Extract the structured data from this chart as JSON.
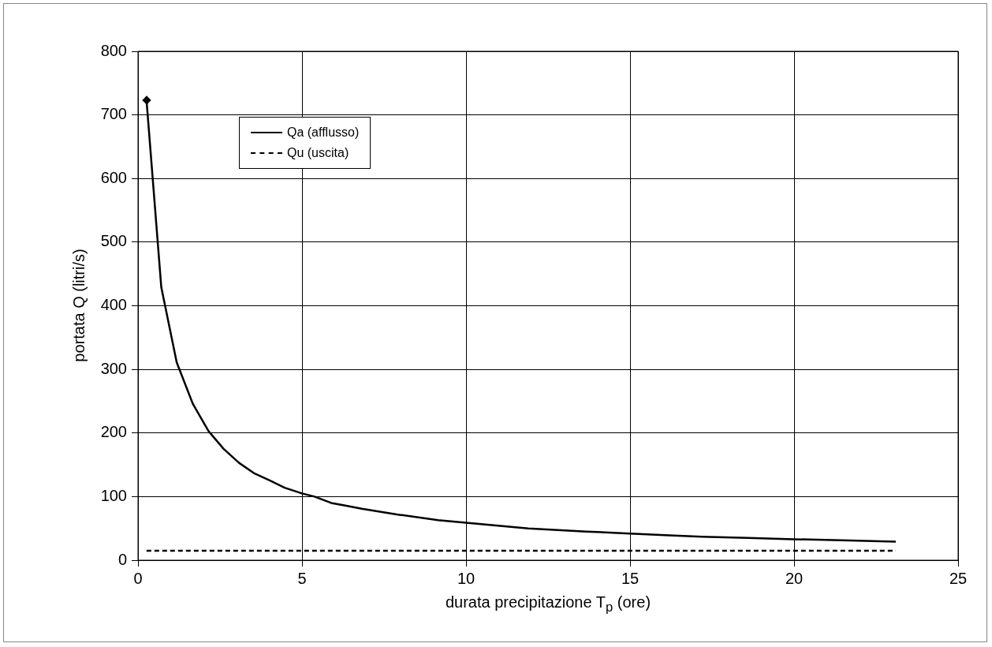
{
  "chart_data": {
    "type": "line",
    "xlabel": "durata precipitazione T$_{p}$ (ore)",
    "ylabel": "portata  Q (litri/s)",
    "xlim": [
      0,
      25
    ],
    "xticks": [
      0,
      5,
      10,
      15,
      20,
      25
    ],
    "ylim": [
      0,
      800
    ],
    "yticks": [
      0,
      100,
      200,
      300,
      400,
      500,
      600,
      700,
      800
    ],
    "grid": true,
    "legend": "top left",
    "marker": "none",
    "series": [
      {
        "name": "Qa (afflusso)",
        "color": "#000000",
        "line_style": "solid",
        "x": [
          0.26,
          0.71,
          1.18,
          1.67,
          2.15,
          2.61,
          3.08,
          3.53,
          3.99,
          4.47,
          5.0,
          5.38,
          5.89,
          6.32,
          6.82,
          7.89,
          9.15,
          10,
          11.9,
          13.67,
          15,
          16.2,
          17.2,
          18.6,
          20,
          21.7,
          23.1
        ],
        "values": [
          723,
          429,
          311,
          246,
          203,
          175,
          153,
          137,
          126,
          114,
          105,
          100,
          90,
          86,
          81,
          72,
          63,
          59,
          50,
          45,
          42,
          39,
          37,
          35,
          33,
          31,
          29
        ]
      },
      {
        "name": "Qu (uscita)",
        "color": "#000000",
        "line_style": "dashed",
        "x": [
          0.26,
          23.1
        ],
        "values": [
          15,
          15
        ]
      }
    ]
  }
}
